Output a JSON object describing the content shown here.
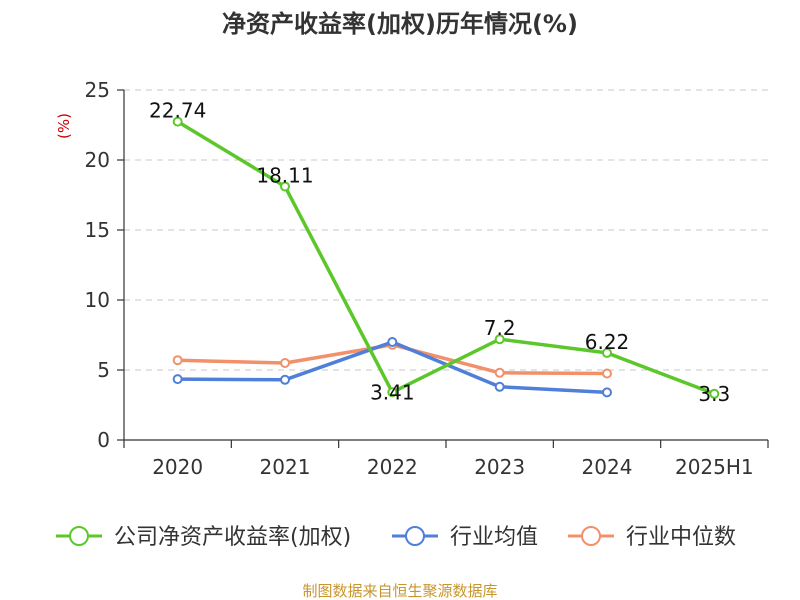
{
  "title": "净资产收益率(加权)历年情况(%)",
  "unit_label": "(%)",
  "source": "制图数据来自恒生聚源数据库",
  "chart_data": {
    "type": "line",
    "title": "净资产收益率(加权)历年情况(%)",
    "ylabel": "(%)",
    "xlabel": "",
    "categories": [
      "2020",
      "2021",
      "2022",
      "2023",
      "2024",
      "2025H1"
    ],
    "ylim": [
      0,
      25
    ],
    "yticks": [
      0,
      5,
      10,
      15,
      20,
      25
    ],
    "grid": "horizontal-dashed",
    "legend_position": "bottom",
    "series": [
      {
        "name": "公司净资产收益率(加权)",
        "color": "#5cc72a",
        "values": [
          22.74,
          18.11,
          3.41,
          7.2,
          6.22,
          3.3
        ],
        "labels": [
          "22.74",
          "18.11",
          "3.41",
          "7.2",
          "6.22",
          "3.3"
        ]
      },
      {
        "name": "行业均值",
        "color": "#4f7fd8",
        "values": [
          4.35,
          4.3,
          7.0,
          3.8,
          3.4,
          null
        ]
      },
      {
        "name": "行业中位数",
        "color": "#f2906a",
        "values": [
          5.7,
          5.5,
          6.8,
          4.8,
          4.75,
          null
        ]
      }
    ]
  }
}
